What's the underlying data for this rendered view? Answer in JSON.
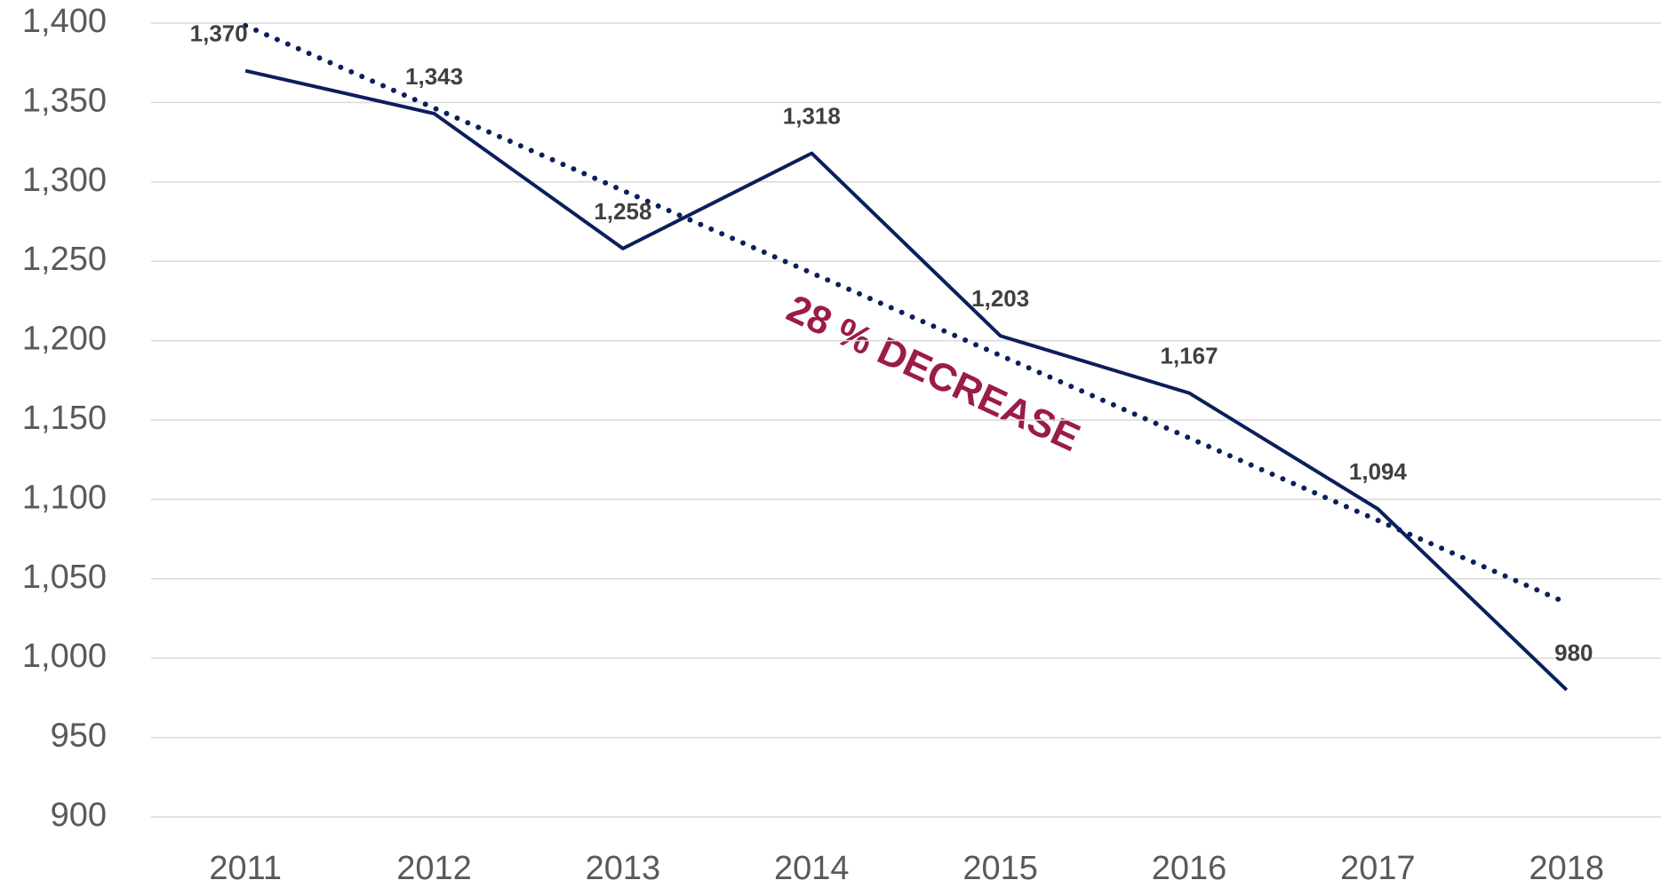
{
  "chart_data": {
    "type": "line",
    "categories": [
      "2011",
      "2012",
      "2013",
      "2014",
      "2015",
      "2016",
      "2017",
      "2018"
    ],
    "series": [
      {
        "color": "#0b1f5c",
        "values": [
          1370,
          1343,
          1258,
          1318,
          1203,
          1167,
          1094,
          980
        ],
        "value_labels": [
          "1,370",
          "1,343",
          "1,258",
          "1,318",
          "1,203",
          "1,167",
          "1,094",
          "980"
        ]
      }
    ],
    "ylim": [
      900,
      1400
    ],
    "yticks": [
      900,
      950,
      {
        "value": 1000,
        "label": "1,000"
      },
      {
        "value": 1050,
        "label": "1,050"
      },
      {
        "value": 1100,
        "label": "1,100"
      },
      {
        "value": 1150,
        "label": "1,150"
      },
      {
        "value": 1200,
        "label": "1,200"
      },
      {
        "value": 1250,
        "label": "1,250"
      },
      {
        "value": 1300,
        "label": "1,300"
      },
      {
        "value": 1350,
        "label": "1,350"
      },
      {
        "value": 1400,
        "label": "1,400"
      }
    ],
    "grid": true,
    "trendline": "linear",
    "annotation": "28 % DECREASE"
  }
}
